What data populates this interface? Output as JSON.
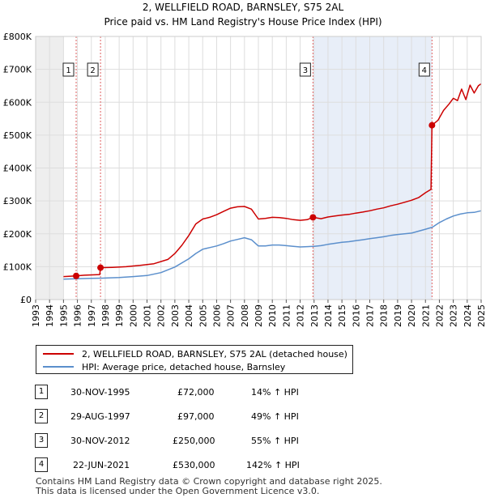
{
  "chart_data": {
    "type": "line",
    "title": "2, WELLFIELD ROAD, BARNSLEY, S75 2AL",
    "subtitle": "Price paid vs. HM Land Registry's House Price Index (HPI)",
    "xlim": [
      1993,
      2025
    ],
    "ylim": [
      0,
      800000
    ],
    "x_ticks": [
      "1993",
      "1994",
      "1995",
      "1996",
      "1997",
      "1998",
      "1999",
      "2000",
      "2001",
      "2002",
      "2003",
      "2004",
      "2005",
      "2006",
      "2007",
      "2008",
      "2009",
      "2010",
      "2011",
      "2012",
      "2013",
      "2014",
      "2015",
      "2016",
      "2017",
      "2018",
      "2019",
      "2020",
      "2021",
      "2022",
      "2023",
      "2024",
      "2025"
    ],
    "y_ticks": [
      {
        "value": 0,
        "label": "£0"
      },
      {
        "value": 100000,
        "label": "£100K"
      },
      {
        "value": 200000,
        "label": "£200K"
      },
      {
        "value": 300000,
        "label": "£300K"
      },
      {
        "value": 400000,
        "label": "£400K"
      },
      {
        "value": 500000,
        "label": "£500K"
      },
      {
        "value": 600000,
        "label": "£600K"
      },
      {
        "value": 700000,
        "label": "£700K"
      },
      {
        "value": 800000,
        "label": "£800K"
      }
    ],
    "grid": true,
    "shaded_ranges": [
      [
        1993,
        1995.0
      ],
      [
        2012.92,
        2021.47
      ]
    ],
    "series": [
      {
        "name": "2, WELLFIELD ROAD, BARNSLEY, S75 2AL (detached house)",
        "color": "#cc0000",
        "points": [
          [
            1995.0,
            70000
          ],
          [
            1995.9,
            72000
          ],
          [
            1996.5,
            74000
          ],
          [
            1997.6,
            76000
          ],
          [
            1997.66,
            97000
          ],
          [
            1998.5,
            98000
          ],
          [
            1999.5,
            100000
          ],
          [
            2000.5,
            104000
          ],
          [
            2001.5,
            109000
          ],
          [
            2002.5,
            122000
          ],
          [
            2003.0,
            140000
          ],
          [
            2003.5,
            165000
          ],
          [
            2004.0,
            195000
          ],
          [
            2004.5,
            230000
          ],
          [
            2005.0,
            245000
          ],
          [
            2005.5,
            250000
          ],
          [
            2006.0,
            258000
          ],
          [
            2006.5,
            268000
          ],
          [
            2007.0,
            278000
          ],
          [
            2007.5,
            282000
          ],
          [
            2008.0,
            283000
          ],
          [
            2008.5,
            275000
          ],
          [
            2009.0,
            245000
          ],
          [
            2009.5,
            247000
          ],
          [
            2010.0,
            250000
          ],
          [
            2010.5,
            249000
          ],
          [
            2011.0,
            247000
          ],
          [
            2011.5,
            243000
          ],
          [
            2012.0,
            241000
          ],
          [
            2012.5,
            243000
          ],
          [
            2012.92,
            250000
          ],
          [
            2013.5,
            246000
          ],
          [
            2014.0,
            251000
          ],
          [
            2014.5,
            254000
          ],
          [
            2015.0,
            257000
          ],
          [
            2015.5,
            259000
          ],
          [
            2016.0,
            263000
          ],
          [
            2016.5,
            266000
          ],
          [
            2017.0,
            270000
          ],
          [
            2017.5,
            275000
          ],
          [
            2018.0,
            279000
          ],
          [
            2018.5,
            285000
          ],
          [
            2019.0,
            290000
          ],
          [
            2019.5,
            296000
          ],
          [
            2020.0,
            302000
          ],
          [
            2020.5,
            310000
          ],
          [
            2021.0,
            325000
          ],
          [
            2021.4,
            335000
          ],
          [
            2021.47,
            530000
          ],
          [
            2021.9,
            545000
          ],
          [
            2022.3,
            575000
          ],
          [
            2022.7,
            595000
          ],
          [
            2023.0,
            612000
          ],
          [
            2023.3,
            605000
          ],
          [
            2023.6,
            640000
          ],
          [
            2023.9,
            608000
          ],
          [
            2024.2,
            652000
          ],
          [
            2024.5,
            628000
          ],
          [
            2024.8,
            650000
          ],
          [
            2025.0,
            656000
          ]
        ]
      },
      {
        "name": "HPI: Average price, detached house, Barnsley",
        "color": "#5b8fcc",
        "points": [
          [
            1995.0,
            62000
          ],
          [
            1996.0,
            63500
          ],
          [
            1997.0,
            64500
          ],
          [
            1998.0,
            65500
          ],
          [
            1999.0,
            67000
          ],
          [
            2000.0,
            70000
          ],
          [
            2001.0,
            73000
          ],
          [
            2002.0,
            82000
          ],
          [
            2003.0,
            99000
          ],
          [
            2004.0,
            124000
          ],
          [
            2004.5,
            140000
          ],
          [
            2005.0,
            153000
          ],
          [
            2005.5,
            158000
          ],
          [
            2006.0,
            163000
          ],
          [
            2006.5,
            170000
          ],
          [
            2007.0,
            178000
          ],
          [
            2007.5,
            183000
          ],
          [
            2008.0,
            188000
          ],
          [
            2008.5,
            182000
          ],
          [
            2009.0,
            163000
          ],
          [
            2009.5,
            163000
          ],
          [
            2010.0,
            166000
          ],
          [
            2010.5,
            166000
          ],
          [
            2011.0,
            164000
          ],
          [
            2011.5,
            162000
          ],
          [
            2012.0,
            160000
          ],
          [
            2012.5,
            161000
          ],
          [
            2013.0,
            162000
          ],
          [
            2013.5,
            164000
          ],
          [
            2014.0,
            168000
          ],
          [
            2014.5,
            171000
          ],
          [
            2015.0,
            174000
          ],
          [
            2015.5,
            176000
          ],
          [
            2016.0,
            179000
          ],
          [
            2016.5,
            182000
          ],
          [
            2017.0,
            185000
          ],
          [
            2017.5,
            188000
          ],
          [
            2018.0,
            191000
          ],
          [
            2018.5,
            195000
          ],
          [
            2019.0,
            198000
          ],
          [
            2019.5,
            200000
          ],
          [
            2020.0,
            202000
          ],
          [
            2020.5,
            208000
          ],
          [
            2021.0,
            214000
          ],
          [
            2021.5,
            220000
          ],
          [
            2022.0,
            234000
          ],
          [
            2022.5,
            245000
          ],
          [
            2023.0,
            254000
          ],
          [
            2023.5,
            260000
          ],
          [
            2024.0,
            264000
          ],
          [
            2024.5,
            265000
          ],
          [
            2025.0,
            270000
          ]
        ]
      }
    ],
    "sale_markers": [
      {
        "label": "1",
        "x": 1995.91,
        "y": 72000
      },
      {
        "label": "2",
        "x": 1997.66,
        "y": 97000
      },
      {
        "label": "3",
        "x": 2012.92,
        "y": 250000
      },
      {
        "label": "4",
        "x": 2021.47,
        "y": 530000
      }
    ]
  },
  "legend": {
    "property_label": "2, WELLFIELD ROAD, BARNSLEY, S75 2AL (detached house)",
    "hpi_label": "HPI: Average price, detached house, Barnsley"
  },
  "sales": [
    {
      "num": "1",
      "date": "30-NOV-1995",
      "price": "£72,000",
      "hpi": "14% ↑ HPI"
    },
    {
      "num": "2",
      "date": "29-AUG-1997",
      "price": "£97,000",
      "hpi": "49% ↑ HPI"
    },
    {
      "num": "3",
      "date": "30-NOV-2012",
      "price": "£250,000",
      "hpi": "55% ↑ HPI"
    },
    {
      "num": "4",
      "date": "22-JUN-2021",
      "price": "£530,000",
      "hpi": "142% ↑ HPI"
    }
  ],
  "footer": {
    "line1": "Contains HM Land Registry data © Crown copyright and database right 2025.",
    "line2": "This data is licensed under the Open Government Licence v3.0."
  }
}
